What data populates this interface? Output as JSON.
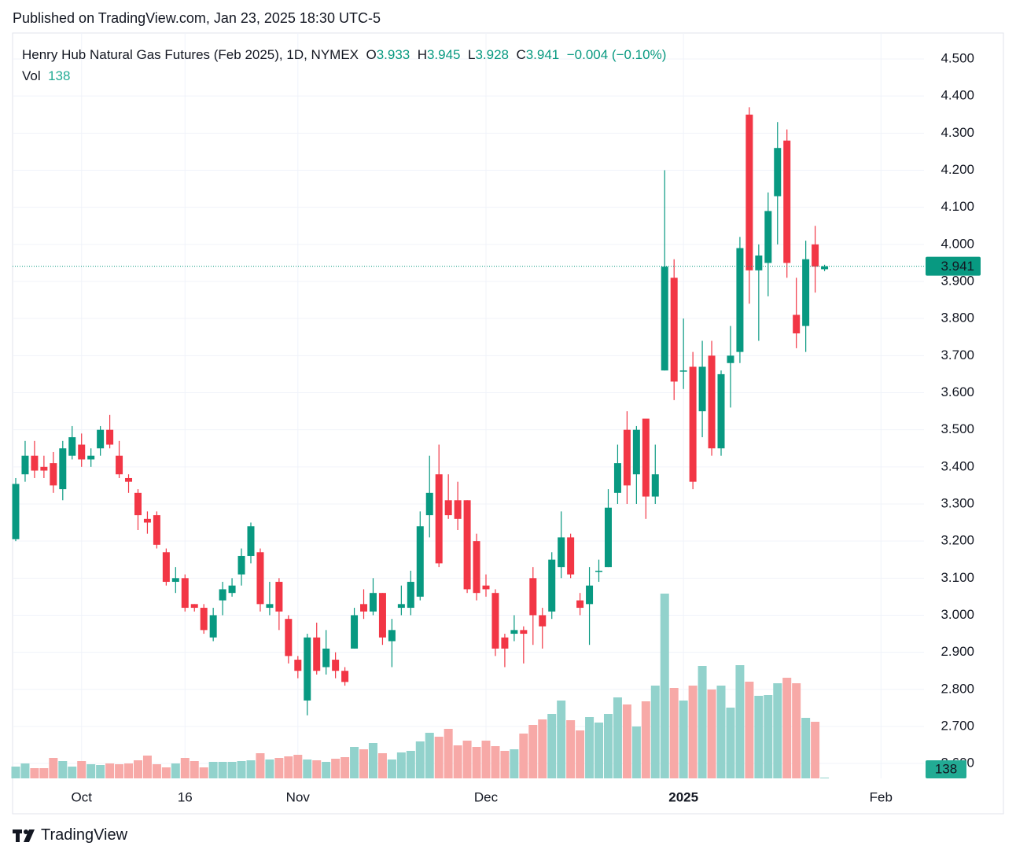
{
  "chart_data": {
    "type": "candlestick",
    "published": "Published on TradingView.com, Jan 23, 2025 18:30 UTC-5",
    "title": "Henry Hub Natural Gas Futures (Feb 2025), 1D, NYMEX",
    "ohlc_labels": [
      "O",
      "H",
      "L",
      "C"
    ],
    "change_label": "−0.004 (−0.10%)",
    "volume_label": "Vol",
    "brand": "TradingView",
    "up_color": "#089981",
    "down_color": "#f23645",
    "up_volume_color": "#92d2cc",
    "down_volume_color": "#f7a9a7",
    "categories": [
      null,
      null,
      null,
      null,
      null,
      null,
      null,
      "Oct",
      null,
      null,
      null,
      null,
      null,
      null,
      null,
      null,
      null,
      null,
      "16",
      null,
      null,
      null,
      null,
      null,
      null,
      null,
      null,
      null,
      null,
      null,
      "Nov",
      null,
      null,
      null,
      null,
      null,
      null,
      null,
      null,
      null,
      null,
      null,
      null,
      null,
      null,
      null,
      null,
      null,
      null,
      null,
      "Dec",
      null,
      null,
      null,
      null,
      null,
      null,
      null,
      null,
      null,
      null,
      null,
      null,
      null,
      null,
      null,
      null,
      null,
      null,
      null,
      null,
      "2025",
      null,
      null,
      null,
      null,
      null,
      null,
      null,
      null,
      null,
      null,
      null,
      null,
      null,
      null,
      null,
      null,
      null,
      null,
      null,
      null,
      "Feb"
    ],
    "open": [
      3.205,
      3.38,
      3.43,
      3.4,
      3.41,
      3.34,
      3.43,
      3.46,
      3.42,
      3.45,
      3.5,
      3.43,
      3.37,
      3.33,
      3.26,
      3.27,
      3.17,
      3.09,
      3.1,
      3.03,
      3.02,
      2.94,
      3.04,
      3.06,
      3.11,
      3.16,
      3.17,
      3.02,
      3.09,
      2.99,
      2.88,
      2.77,
      2.94,
      2.86,
      2.88,
      2.85,
      2.91,
      3.03,
      3.01,
      3.06,
      2.93,
      3.02,
      3.02,
      3.05,
      3.27,
      3.38,
      3.31,
      3.31,
      3.31,
      3.2,
      3.08,
      3.06,
      2.94,
      2.95,
      2.96,
      3.1,
      3.0,
      3.01,
      3.13,
      3.21,
      3.04,
      3.03,
      3.12,
      3.13,
      3.33,
      3.5,
      3.38,
      3.53,
      3.32,
      3.66,
      3.91,
      3.66,
      3.67,
      3.55,
      3.7,
      3.45,
      3.68,
      3.71,
      4.35,
      3.93,
      3.95,
      4.13,
      4.28,
      3.81,
      3.78,
      4.0,
      3.933,
      null,
      null,
      null,
      null,
      null,
      null
    ],
    "high": [
      3.37,
      3.47,
      3.47,
      3.43,
      3.44,
      3.47,
      3.51,
      3.49,
      3.45,
      3.51,
      3.54,
      3.47,
      3.38,
      3.34,
      3.28,
      3.28,
      3.18,
      3.13,
      3.11,
      3.03,
      3.03,
      3.02,
      3.09,
      3.1,
      3.18,
      3.25,
      3.18,
      3.09,
      3.1,
      3.0,
      2.89,
      2.95,
      2.98,
      2.96,
      2.9,
      2.86,
      3.02,
      3.07,
      3.1,
      3.06,
      2.99,
      3.08,
      3.12,
      3.28,
      3.43,
      3.46,
      3.38,
      3.36,
      3.31,
      3.22,
      3.11,
      3.07,
      2.95,
      3.0,
      2.97,
      3.13,
      3.02,
      3.17,
      3.28,
      3.22,
      3.06,
      3.13,
      3.15,
      3.34,
      3.46,
      3.55,
      3.51,
      3.53,
      3.46,
      4.2,
      3.96,
      3.8,
      3.71,
      3.74,
      3.74,
      3.66,
      3.78,
      4.02,
      4.37,
      4.0,
      4.14,
      4.33,
      4.31,
      3.91,
      4.01,
      4.05,
      3.945,
      null,
      null,
      null,
      null,
      null,
      null
    ],
    "low": [
      3.2,
      3.36,
      3.37,
      3.37,
      3.33,
      3.31,
      3.42,
      3.4,
      3.4,
      3.43,
      3.45,
      3.37,
      3.33,
      3.23,
      3.22,
      3.18,
      3.08,
      3.06,
      3.01,
      3.01,
      2.95,
      2.93,
      3.0,
      3.05,
      3.08,
      3.14,
      3.01,
      3.0,
      2.96,
      2.87,
      2.83,
      2.73,
      2.84,
      2.84,
      2.83,
      2.81,
      2.91,
      2.99,
      3.0,
      2.92,
      2.86,
      3.0,
      3.0,
      3.04,
      3.21,
      3.13,
      3.26,
      3.23,
      3.06,
      3.04,
      3.05,
      2.89,
      2.86,
      2.93,
      2.87,
      2.92,
      2.91,
      2.99,
      3.1,
      3.1,
      3.0,
      2.92,
      3.09,
      3.13,
      3.3,
      3.3,
      3.3,
      3.26,
      3.3,
      3.66,
      3.58,
      3.61,
      3.34,
      3.48,
      3.43,
      3.43,
      3.56,
      3.68,
      3.84,
      3.74,
      3.86,
      4.0,
      3.91,
      3.72,
      3.71,
      3.87,
      3.928,
      null,
      null,
      null,
      null,
      null,
      null
    ],
    "close": [
      3.354,
      3.43,
      3.39,
      3.39,
      3.35,
      3.45,
      3.48,
      3.42,
      3.43,
      3.5,
      3.46,
      3.38,
      3.36,
      3.27,
      3.25,
      3.19,
      3.09,
      3.1,
      3.02,
      3.02,
      2.96,
      3.0,
      3.07,
      3.08,
      3.16,
      3.24,
      3.03,
      3.03,
      3.01,
      2.89,
      2.85,
      2.94,
      2.85,
      2.91,
      2.85,
      2.82,
      3.0,
      3.01,
      3.06,
      2.94,
      2.96,
      3.03,
      3.09,
      3.24,
      3.33,
      3.14,
      3.27,
      3.26,
      3.07,
      3.06,
      3.07,
      2.91,
      2.91,
      2.96,
      2.95,
      3.0,
      2.97,
      3.15,
      3.21,
      3.11,
      3.02,
      3.08,
      3.12,
      3.29,
      3.41,
      3.35,
      3.5,
      3.32,
      3.38,
      3.94,
      3.63,
      3.66,
      3.36,
      3.67,
      3.45,
      3.65,
      3.7,
      3.99,
      3.93,
      3.97,
      4.09,
      4.26,
      3.95,
      3.76,
      3.96,
      3.94,
      3.941,
      null,
      null,
      null,
      null,
      null,
      null
    ],
    "volume": [
      2100,
      2660,
      1820,
      1820,
      3640,
      3080,
      2100,
      3080,
      2520,
      2380,
      2660,
      2520,
      2660,
      3220,
      4060,
      2520,
      1960,
      2660,
      3640,
      3080,
      1960,
      2940,
      2940,
      2940,
      3080,
      3220,
      4480,
      3360,
      3640,
      3920,
      4200,
      3360,
      3220,
      2940,
      3500,
      3780,
      5600,
      5180,
      6300,
      4480,
      3360,
      4620,
      4900,
      6580,
      8120,
      7420,
      8820,
      5880,
      6720,
      5600,
      6720,
      5740,
      4900,
      5180,
      7980,
      9520,
      10500,
      11480,
      13860,
      10360,
      8540,
      10920,
      9940,
      11480,
      14420,
      13160,
      9240,
      13720,
      16520,
      32900,
      16100,
      13860,
      16520,
      20020,
      15820,
      16520,
      12600,
      20160,
      17220,
      14700,
      14840,
      16940,
      17920,
      16940,
      10780,
      10080,
      138,
      null,
      null,
      null,
      null,
      null,
      null
    ],
    "ylim": [
      2.56,
      4.57
    ],
    "yticks": [
      {
        "value": 2.6,
        "label": "2.600"
      },
      {
        "value": 2.7,
        "label": "2.700"
      },
      {
        "value": 2.8,
        "label": "2.800"
      },
      {
        "value": 2.9,
        "label": "2.900"
      },
      {
        "value": 3.0,
        "label": "3.000"
      },
      {
        "value": 3.1,
        "label": "3.100"
      },
      {
        "value": 3.2,
        "label": "3.200"
      },
      {
        "value": 3.3,
        "label": "3.300"
      },
      {
        "value": 3.4,
        "label": "3.400"
      },
      {
        "value": 3.5,
        "label": "3.500"
      },
      {
        "value": 3.6,
        "label": "3.600"
      },
      {
        "value": 3.7,
        "label": "3.700"
      },
      {
        "value": 3.8,
        "label": "3.800"
      },
      {
        "value": 3.9,
        "label": "3.900"
      },
      {
        "value": 4.0,
        "label": "4.000"
      },
      {
        "value": 4.1,
        "label": "4.100"
      },
      {
        "value": 4.2,
        "label": "4.200"
      },
      {
        "value": 4.3,
        "label": "4.300"
      },
      {
        "value": 4.4,
        "label": "4.400"
      },
      {
        "value": 4.5,
        "label": "4.500"
      }
    ],
    "grid": true
  }
}
